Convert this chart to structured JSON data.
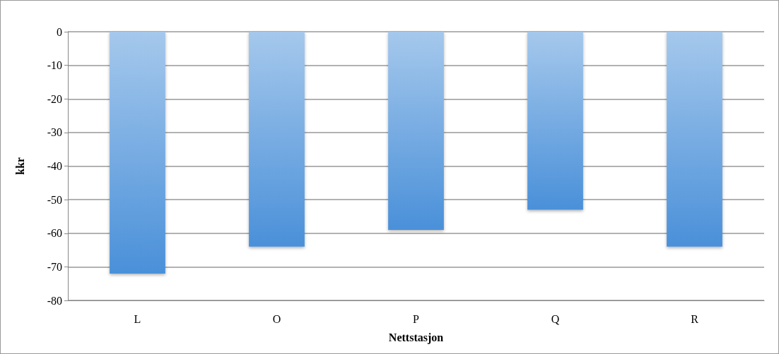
{
  "chart_data": {
    "type": "bar",
    "xlabel": "Nettstasjon",
    "ylabel": "kkr",
    "categories": [
      "L",
      "O",
      "P",
      "Q",
      "R"
    ],
    "values": [
      -72,
      -64,
      -59,
      -53,
      -64
    ],
    "color": "#4a90d9",
    "ylim": [
      -80,
      0
    ],
    "yticks": [
      -80,
      -70,
      -60,
      -50,
      -40,
      -30,
      -20,
      -10,
      0
    ],
    "grid": "y"
  }
}
